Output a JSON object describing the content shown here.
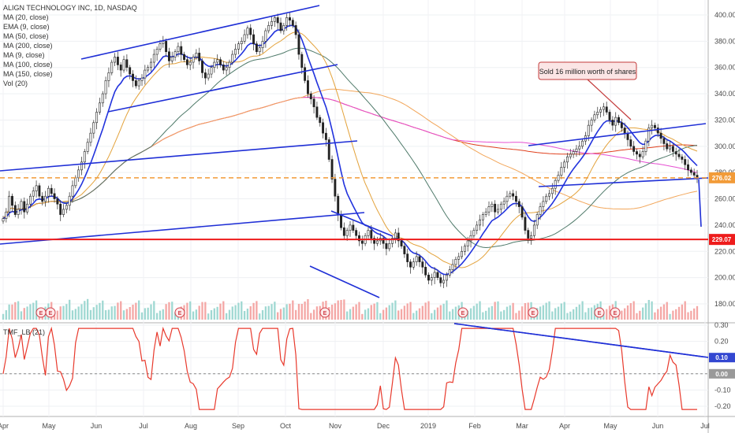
{
  "chart_data": {
    "type": "candlestick",
    "title": "ALIGN TECHNOLOGY INC, 1D, NASDAQ",
    "legend": [
      "MA (20, close)",
      "EMA (9, close)",
      "MA (50, close)",
      "MA (200, close)",
      "MA (9, close)",
      "MA (100, close)",
      "MA (150, close)",
      "Vol (20)"
    ],
    "x_ticks": [
      "Apr",
      "May",
      "Jun",
      "Jul",
      "Aug",
      "Sep",
      "Oct",
      "Nov",
      "Dec",
      "2019",
      "Feb",
      "Mar",
      "Apr",
      "May",
      "Jun",
      "Jul"
    ],
    "price_axis": {
      "ticks": [
        "400.00",
        "380.00",
        "360.00",
        "340.00",
        "320.00",
        "300.00",
        "280.00",
        "260.00",
        "240.00",
        "220.00",
        "200.00",
        "180.00"
      ],
      "range": [
        170,
        410
      ]
    },
    "price_labels": [
      {
        "value": 276.02,
        "text": "276.02",
        "color": "#f29b38"
      },
      {
        "value": 229.07,
        "text": "229.07",
        "color": "#ee1c1c"
      }
    ],
    "annotation": "Sold 16 million worth of shares",
    "earnings_markers": [
      "E",
      "E",
      "E",
      "E",
      "E",
      "E",
      "E",
      "E"
    ],
    "indicator": {
      "name": "TMF_LB (21)",
      "ticks": [
        "0.30",
        "0.20",
        "0.10",
        "0.00",
        "-0.10",
        "-0.20"
      ],
      "range": [
        -0.25,
        0.32
      ],
      "badges": [
        {
          "value": 0.1,
          "text": "0.10",
          "color": "#3347d1"
        },
        {
          "value": 0.0,
          "text": "0.00",
          "color": "#999999"
        }
      ]
    },
    "closes": [
      245,
      250,
      262,
      255,
      248,
      252,
      258,
      250,
      256,
      262,
      266,
      270,
      262,
      258,
      262,
      268,
      264,
      260,
      256,
      248,
      252,
      255,
      262,
      270,
      276,
      282,
      288,
      296,
      303,
      310,
      318,
      326,
      333,
      340,
      350,
      356,
      364,
      368,
      362,
      358,
      366,
      360,
      355,
      350,
      346,
      350,
      352,
      358,
      360,
      364,
      370,
      374,
      378,
      380,
      372,
      365,
      368,
      372,
      376,
      370,
      366,
      362,
      364,
      368,
      371,
      365,
      356,
      352,
      355,
      360,
      364,
      366,
      362,
      358,
      360,
      364,
      370,
      374,
      378,
      380,
      385,
      390,
      385,
      378,
      372,
      375,
      380,
      388,
      392,
      395,
      398,
      394,
      388,
      392,
      398,
      396,
      392,
      385,
      370,
      360,
      350,
      340,
      336,
      330,
      322,
      318,
      310,
      305,
      290,
      275,
      262,
      248,
      238,
      232,
      236,
      240,
      236,
      232,
      228,
      226,
      232,
      236,
      230,
      226,
      228,
      230,
      226,
      222,
      226,
      230,
      234,
      228,
      224,
      218,
      212,
      208,
      212,
      216,
      212,
      208,
      202,
      198,
      200,
      204,
      200,
      196,
      198,
      202,
      206,
      210,
      214,
      216,
      220,
      224,
      228,
      232,
      236,
      240,
      244,
      248,
      250,
      254,
      256,
      250,
      252,
      256,
      258,
      262,
      264,
      262,
      258,
      254,
      246,
      236,
      230,
      232,
      240,
      248,
      254,
      258,
      262,
      264,
      268,
      274,
      278,
      284,
      288,
      292,
      294,
      296,
      298,
      300,
      304,
      308,
      316,
      320,
      324,
      326,
      328,
      330,
      326,
      320,
      316,
      322,
      318,
      314,
      310,
      305,
      300,
      296,
      294,
      292,
      296,
      304,
      314,
      316,
      314,
      310,
      306,
      302,
      298,
      300,
      296,
      294,
      292,
      290,
      286,
      282,
      280,
      278,
      276
    ]
  }
}
